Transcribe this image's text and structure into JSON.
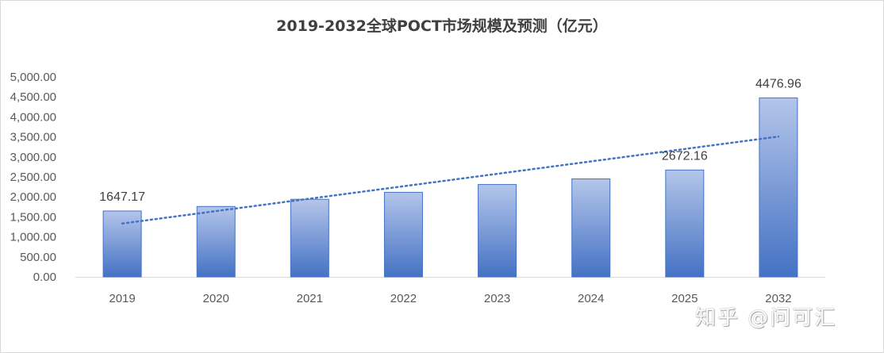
{
  "chart_data": {
    "type": "bar",
    "title": "2019-2032全球POCT市场规模及预测（亿元）",
    "categories": [
      "2019",
      "2020",
      "2021",
      "2022",
      "2023",
      "2024",
      "2025",
      "2032"
    ],
    "values": [
      1647.17,
      1760,
      1940,
      2115,
      2310,
      2450,
      2672.16,
      4476.96
    ],
    "data_labels": [
      {
        "index": 0,
        "text": "1647.17"
      },
      {
        "index": 6,
        "text": "2672.16"
      },
      {
        "index": 7,
        "text": "4476.96"
      }
    ],
    "ylim": [
      0,
      5000
    ],
    "yticks": [
      "0.00",
      "500.00",
      "1,000.00",
      "1,500.00",
      "2,000.00",
      "2,500.00",
      "3,000.00",
      "3,500.00",
      "4,000.00",
      "4,500.00",
      "5,000.00"
    ],
    "trendline": {
      "type": "linear",
      "style": "dotted",
      "color": "#4472c4"
    },
    "bar_color_top": "#b4c5ea",
    "bar_color_bottom": "#4472c4",
    "bar_border": "#4472c4",
    "grid": false,
    "legend": "none"
  },
  "watermark": "知乎 @问可汇"
}
